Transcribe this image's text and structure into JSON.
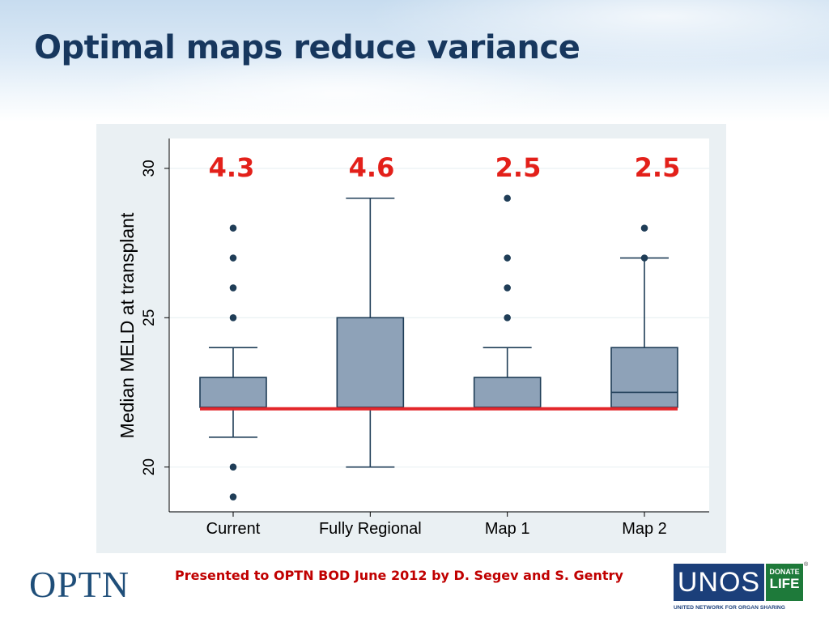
{
  "slide": {
    "title": "Optimal maps reduce variance",
    "footer_credit": "Presented to OPTN BOD June 2012 by D. Segev and S. Gentry"
  },
  "logos": {
    "optn": "OPTN",
    "unos": "UNOS",
    "donate_line1": "DONATE",
    "donate_line2": "LIFE",
    "unos_tagline": "UNITED NETWORK FOR ORGAN SHARING"
  },
  "colors": {
    "title": "#17375e",
    "box_fill": "#8ea2b8",
    "box_stroke": "#1f3d57",
    "outlier": "#1f3d57",
    "reference_line": "#e3262b",
    "annotation": "#e3201a",
    "plot_bg": "#ffffff",
    "outer_bg": "#eaf0f3",
    "grid": "#eaf0f3"
  },
  "chart_data": {
    "type": "boxplot",
    "title": "",
    "xlabel": "",
    "ylabel": "Median MELD at transplant",
    "ylim": [
      18.5,
      31
    ],
    "yticks": [
      20,
      25,
      30
    ],
    "grid": true,
    "legend": "none",
    "categories": [
      "Current",
      "Fully Regional",
      "Map 1",
      "Map 2"
    ],
    "boxes": [
      {
        "category": "Current",
        "whisker_low": 21,
        "q1": 22,
        "median": 22,
        "q3": 23,
        "whisker_high": 24,
        "outliers": [
          19,
          20,
          25,
          26,
          27,
          28
        ]
      },
      {
        "category": "Fully Regional",
        "whisker_low": 20,
        "q1": 22,
        "median": 22,
        "q3": 25,
        "whisker_high": 29,
        "outliers": []
      },
      {
        "category": "Map 1",
        "whisker_low": 22,
        "q1": 22,
        "median": 22,
        "q3": 23,
        "whisker_high": 24,
        "outliers": [
          25,
          26,
          27,
          29
        ]
      },
      {
        "category": "Map 2",
        "whisker_low": 22,
        "q1": 22,
        "median": 22.5,
        "q3": 24,
        "whisker_high": 27,
        "outliers": [
          27,
          28
        ]
      }
    ],
    "annotations": [
      "4.3",
      "4.6",
      "2.5",
      "2.5"
    ],
    "reference_line": {
      "y": 21.95
    }
  }
}
